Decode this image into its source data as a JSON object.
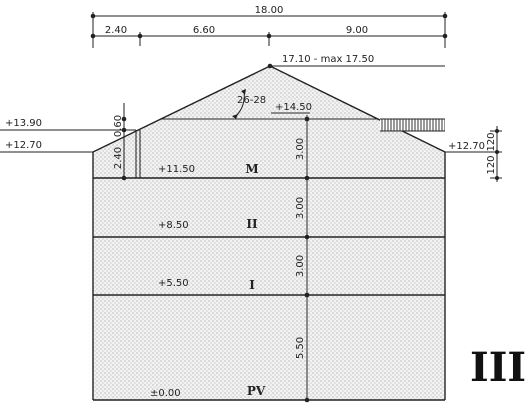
{
  "top_dimensions": {
    "overall": "18.00",
    "segments": [
      "2.40",
      "6.60",
      "9.00"
    ]
  },
  "roof": {
    "ridge_label": "17.10 - max 17.50",
    "pitch_label": "26-28",
    "attic_level": "+14.50",
    "roof_thickness": "0.60"
  },
  "left_levels": {
    "eave_top": "+13.90",
    "eave": "+12.70",
    "knee_wall": "2.40"
  },
  "right_levels": {
    "eave": "+12.70",
    "dim_a": "120",
    "dim_b": "120"
  },
  "floors": [
    {
      "label": "M",
      "level": "+11.50",
      "height": "3.00"
    },
    {
      "label": "II",
      "level": "+8.50",
      "height": "3.00"
    },
    {
      "label": "I",
      "level": "+5.50",
      "height": "3.00"
    },
    {
      "label": "PV",
      "level": "±0.00",
      "height": "5.50"
    }
  ],
  "section_label": "III"
}
